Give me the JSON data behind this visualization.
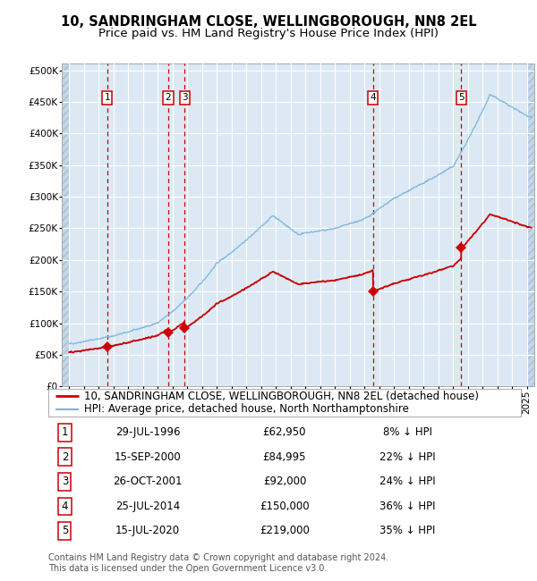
{
  "title": "10, SANDRINGHAM CLOSE, WELLINGBOROUGH, NN8 2EL",
  "subtitle": "Price paid vs. HM Land Registry's House Price Index (HPI)",
  "legend_line1": "10, SANDRINGHAM CLOSE, WELLINGBOROUGH, NN8 2EL (detached house)",
  "legend_line2": "HPI: Average price, detached house, North Northamptonshire",
  "footer1": "Contains HM Land Registry data © Crown copyright and database right 2024.",
  "footer2": "This data is licensed under the Open Government Licence v3.0.",
  "xlim": [
    1993.5,
    2025.5
  ],
  "ylim": [
    0,
    510000
  ],
  "yticks": [
    0,
    50000,
    100000,
    150000,
    200000,
    250000,
    300000,
    350000,
    400000,
    450000,
    500000
  ],
  "sale_points": [
    {
      "year": 1996.57,
      "price": 62950,
      "label": "1"
    },
    {
      "year": 2000.71,
      "price": 84995,
      "label": "2"
    },
    {
      "year": 2001.82,
      "price": 92000,
      "label": "3"
    },
    {
      "year": 2014.57,
      "price": 150000,
      "label": "4"
    },
    {
      "year": 2020.54,
      "price": 219000,
      "label": "5"
    }
  ],
  "table_rows": [
    {
      "num": "1",
      "date": "29-JUL-1996",
      "price": "£62,950",
      "pct": "8% ↓ HPI"
    },
    {
      "num": "2",
      "date": "15-SEP-2000",
      "price": "£84,995",
      "pct": "22% ↓ HPI"
    },
    {
      "num": "3",
      "date": "26-OCT-2001",
      "price": "£92,000",
      "pct": "24% ↓ HPI"
    },
    {
      "num": "4",
      "date": "25-JUL-2014",
      "price": "£150,000",
      "pct": "36% ↓ HPI"
    },
    {
      "num": "5",
      "date": "15-JUL-2020",
      "price": "£219,000",
      "pct": "35% ↓ HPI"
    }
  ],
  "hpi_color": "#7ab4d8",
  "price_color": "#cc0000",
  "bg_color": "#dce9f5",
  "hatch_color": "#c4d6e8",
  "grid_color": "#ffffff",
  "dashed_color": "#cc0000",
  "title_fontsize": 10.5,
  "subtitle_fontsize": 9.5,
  "tick_fontsize": 7.5,
  "legend_fontsize": 8.5,
  "table_fontsize": 8.5,
  "footer_fontsize": 7.0,
  "hatch_xleft": 1994.0,
  "hatch_xright": 2025.0
}
